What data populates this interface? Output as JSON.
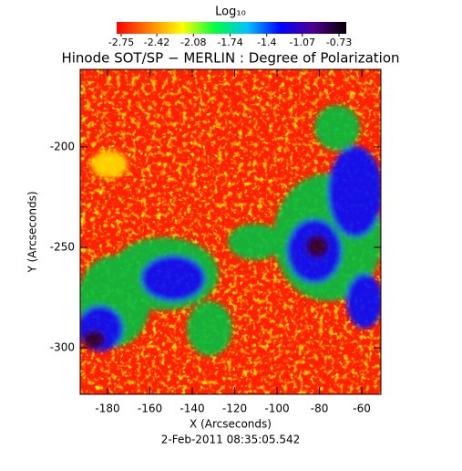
{
  "chart_data": {
    "type": "heatmap",
    "title": "Hinode SOT/SP − MERLIN : Degree of Polarization",
    "colorbar_label": "Log₁₀",
    "colorbar_ticks": [
      -2.75,
      -2.42,
      -2.08,
      -1.74,
      -1.4,
      -1.07,
      -0.73
    ],
    "colorbar_lim": [
      -2.75,
      -0.73
    ],
    "colorbar_colors": [
      "#ff0000",
      "#ff8000",
      "#ffff00",
      "#00ff40",
      "#00c0ff",
      "#0000ff",
      "#500090",
      "#000000"
    ],
    "xlabel": "X (Arcseconds)",
    "ylabel": "Y (Arcseconds)",
    "xlim": [
      -192.9,
      -51
    ],
    "ylim": [
      -323.2,
      -161.4
    ],
    "xticks": [
      -180,
      -160,
      -140,
      -120,
      -100,
      -80,
      -60
    ],
    "yticks": [
      -200,
      -250,
      -300
    ],
    "date": "2-Feb-2011 08:35:05.542"
  }
}
